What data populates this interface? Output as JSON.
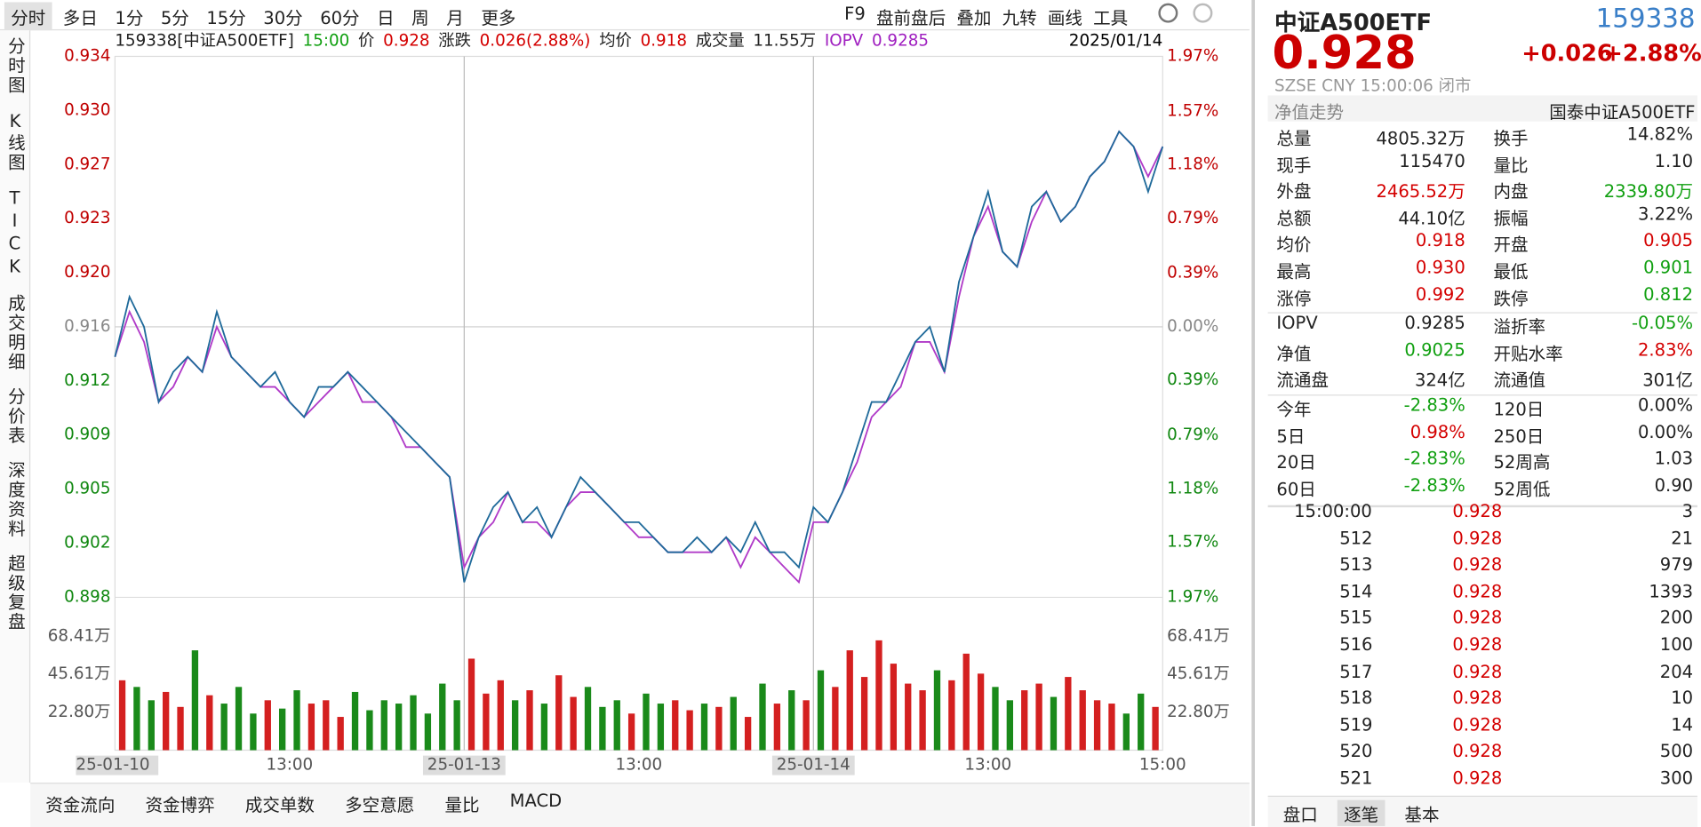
{
  "toolbar": {
    "periods": [
      "分时",
      "多日",
      "1分",
      "5分",
      "15分",
      "30分",
      "60分",
      "日",
      "周",
      "月",
      "更多"
    ],
    "tools": [
      "F9",
      "盘前盘后",
      "叠加",
      "九转",
      "画线",
      "工具"
    ]
  },
  "sidebar": [
    "分时图",
    "K线图",
    "TICK",
    "成交明细",
    "分价表",
    "深度资料",
    "超级复盘"
  ],
  "info": {
    "items": [
      {
        "text": "159338[中证A500ETF]",
        "color": "#222"
      },
      {
        "text": "15:00",
        "color": "#11a011"
      },
      {
        "text": "价",
        "color": "#222"
      },
      {
        "text": "0.928",
        "color": "#d40000"
      },
      {
        "text": "涨跌",
        "color": "#222"
      },
      {
        "text": "0.026(2.88%)",
        "color": "#d40000"
      },
      {
        "text": "均价",
        "color": "#222"
      },
      {
        "text": "0.918",
        "color": "#d40000"
      },
      {
        "text": "成交量",
        "color": "#222"
      },
      {
        "text": "11.55万",
        "color": "#222"
      },
      {
        "text": "IOPV",
        "color": "#a020c0"
      },
      {
        "text": "0.9285",
        "color": "#a020c0"
      }
    ],
    "date": "2025/01/14"
  },
  "chart_data": {
    "type": "line",
    "series": [
      {
        "color": "#1f6a9a",
        "values": [
          0.914,
          0.918,
          0.916,
          0.911,
          0.913,
          0.914,
          0.913,
          0.917,
          0.914,
          0.913,
          0.912,
          0.913,
          0.911,
          0.91,
          0.912,
          0.912,
          0.913,
          0.912,
          0.911,
          0.91,
          0.909,
          0.908,
          0.907,
          0.906,
          0.899,
          0.902,
          0.904,
          0.905,
          0.903,
          0.904,
          0.902,
          0.904,
          0.906,
          0.905,
          0.904,
          0.903,
          0.903,
          0.902,
          0.901,
          0.901,
          0.902,
          0.901,
          0.902,
          0.901,
          0.903,
          0.901,
          0.901,
          0.9,
          0.904,
          0.903,
          0.905,
          0.908,
          0.911,
          0.911,
          0.913,
          0.915,
          0.916,
          0.913,
          0.919,
          0.922,
          0.925,
          0.921,
          0.92,
          0.924,
          0.925,
          0.923,
          0.924,
          0.926,
          0.927,
          0.929,
          0.928,
          0.925,
          0.928
        ]
      },
      {
        "color": "#b03ac8",
        "values": [
          0.914,
          0.917,
          0.915,
          0.911,
          0.912,
          0.914,
          0.913,
          0.916,
          0.914,
          0.913,
          0.912,
          0.912,
          0.911,
          0.91,
          0.911,
          0.912,
          0.913,
          0.911,
          0.911,
          0.91,
          0.908,
          0.908,
          0.907,
          0.906,
          0.9,
          0.902,
          0.903,
          0.905,
          0.903,
          0.903,
          0.902,
          0.904,
          0.905,
          0.905,
          0.904,
          0.903,
          0.902,
          0.902,
          0.901,
          0.901,
          0.901,
          0.901,
          0.902,
          0.9,
          0.902,
          0.901,
          0.9,
          0.899,
          0.903,
          0.903,
          0.905,
          0.907,
          0.91,
          0.911,
          0.912,
          0.915,
          0.915,
          0.913,
          0.918,
          0.922,
          0.924,
          0.921,
          0.92,
          0.923,
          0.925,
          0.923,
          0.924,
          0.926,
          0.927,
          0.929,
          0.928,
          0.926,
          0.928
        ]
      }
    ],
    "ylim": [
      0.898,
      0.934
    ],
    "yticks": [
      {
        "value": 0.934,
        "label": "0.934"
      },
      {
        "value": 0.9304,
        "label": "0.930"
      },
      {
        "value": 0.9268,
        "label": "0.927"
      },
      {
        "value": 0.9232,
        "label": "0.923"
      },
      {
        "value": 0.9196,
        "label": "0.920"
      },
      {
        "value": 0.916,
        "label": "0.916"
      },
      {
        "value": 0.9124,
        "label": "0.912"
      },
      {
        "value": 0.9088,
        "label": "0.909"
      },
      {
        "value": 0.9052,
        "label": "0.905"
      },
      {
        "value": 0.9016,
        "label": "0.902"
      },
      {
        "value": 0.898,
        "label": "0.898"
      }
    ],
    "y2lim": [
      -1.97,
      1.97
    ],
    "y2ticks": [
      {
        "value": 1.97,
        "label": "1.97%"
      },
      {
        "value": 1.57,
        "label": "1.57%"
      },
      {
        "value": 1.18,
        "label": "1.18%"
      },
      {
        "value": 0.79,
        "label": "0.79%"
      },
      {
        "value": 0.39,
        "label": "0.39%"
      },
      {
        "value": 0,
        "label": "0.00%"
      },
      {
        "value": -0.39,
        "label": "0.39%"
      },
      {
        "value": -0.79,
        "label": "0.79%"
      },
      {
        "value": -1.18,
        "label": "1.18%"
      },
      {
        "value": -1.57,
        "label": "1.57%"
      },
      {
        "value": -1.97,
        "label": "1.97%"
      }
    ],
    "xlim": [
      0,
      72
    ],
    "xticks": [
      {
        "value": 0,
        "label": "25-01-10"
      },
      {
        "value": 12,
        "label": "13:00"
      },
      {
        "value": 24,
        "label": "25-01-13"
      },
      {
        "value": 36,
        "label": "13:00"
      },
      {
        "value": 48,
        "label": "25-01-14"
      },
      {
        "value": 60,
        "label": "13:00"
      },
      {
        "value": 72,
        "label": "15:00"
      }
    ],
    "volume": {
      "values": [
        42,
        38,
        30,
        35,
        26,
        60,
        33,
        28,
        38,
        22,
        30,
        25,
        36,
        28,
        30,
        20,
        35,
        24,
        30,
        28,
        33,
        22,
        40,
        30,
        55,
        34,
        42,
        30,
        36,
        28,
        45,
        32,
        38,
        26,
        30,
        22,
        34,
        28,
        30,
        24,
        28,
        26,
        32,
        20,
        40,
        28,
        36,
        30,
        48,
        38,
        60,
        44,
        66,
        52,
        40,
        36,
        48,
        42,
        58,
        46,
        38,
        30,
        36,
        40,
        32,
        44,
        36,
        30,
        28,
        22,
        34,
        26
      ],
      "ylim": [
        0,
        91.2
      ],
      "yticks": [
        {
          "value": 68.41,
          "label": "68.41万"
        },
        {
          "value": 45.61,
          "label": "45.61万"
        },
        {
          "value": 22.8,
          "label": "22.80万"
        }
      ],
      "up_color": "#d42020",
      "down_color": "#1a8a1a"
    }
  },
  "indicator_tabs": [
    "资金流向",
    "资金博弈",
    "成交单数",
    "多空意愿",
    "量比",
    "MACD"
  ],
  "quote": {
    "name": "中证A500ETF",
    "code": "159338",
    "price": "0.928",
    "change": "+0.026",
    "change_pct": "+2.88%",
    "status": "SZSE  CNY  15:00:06  闭市",
    "nav_label": "净值走势",
    "fund": "国泰中证A500ETF",
    "groups": [
      [
        [
          "总量",
          "4805.32万",
          null,
          "换手",
          "14.82%",
          null
        ],
        [
          "现手",
          "115470",
          null,
          "量比",
          "1.10",
          null
        ],
        [
          "外盘",
          "2465.52万",
          "#d40000",
          "内盘",
          "2339.80万",
          "#11a011"
        ],
        [
          "总额",
          "44.10亿",
          null,
          "振幅",
          "3.22%",
          null
        ],
        [
          "均价",
          "0.918",
          "#d40000",
          "开盘",
          "0.905",
          "#d40000"
        ],
        [
          "最高",
          "0.930",
          "#d40000",
          "最低",
          "0.901",
          "#11a011"
        ],
        [
          "涨停",
          "0.992",
          "#d40000",
          "跌停",
          "0.812",
          "#11a011"
        ]
      ],
      [
        [
          "IOPV",
          "0.9285",
          null,
          "溢折率",
          "-0.05%",
          "#11a011"
        ],
        [
          "净值",
          "0.9025",
          "#11a011",
          "开贴水率",
          "2.83%",
          "#d40000"
        ],
        [
          "流通盘",
          "324亿",
          null,
          "流通值",
          "301亿",
          null
        ]
      ],
      [
        [
          "今年",
          "-2.83%",
          "#11a011",
          "120日",
          "0.00%",
          null
        ],
        [
          "5日",
          "0.98%",
          "#d40000",
          "250日",
          "0.00%",
          null
        ],
        [
          "20日",
          "-2.83%",
          "#11a011",
          "52周高",
          "1.03",
          null
        ],
        [
          "60日",
          "-2.83%",
          "#11a011",
          "52周低",
          "0.90",
          null
        ]
      ]
    ],
    "ticks": [
      [
        "15:00:00",
        "0.928",
        "3"
      ],
      [
        "512",
        "0.928",
        "21"
      ],
      [
        "513",
        "0.928",
        "979"
      ],
      [
        "514",
        "0.928",
        "1393"
      ],
      [
        "515",
        "0.928",
        "200"
      ],
      [
        "516",
        "0.928",
        "100"
      ],
      [
        "517",
        "0.928",
        "204"
      ],
      [
        "518",
        "0.928",
        "10"
      ],
      [
        "519",
        "0.928",
        "14"
      ],
      [
        "520",
        "0.928",
        "500"
      ],
      [
        "521",
        "0.928",
        "300"
      ]
    ],
    "tabs": [
      "盘口",
      "逐笔",
      "基本"
    ]
  }
}
